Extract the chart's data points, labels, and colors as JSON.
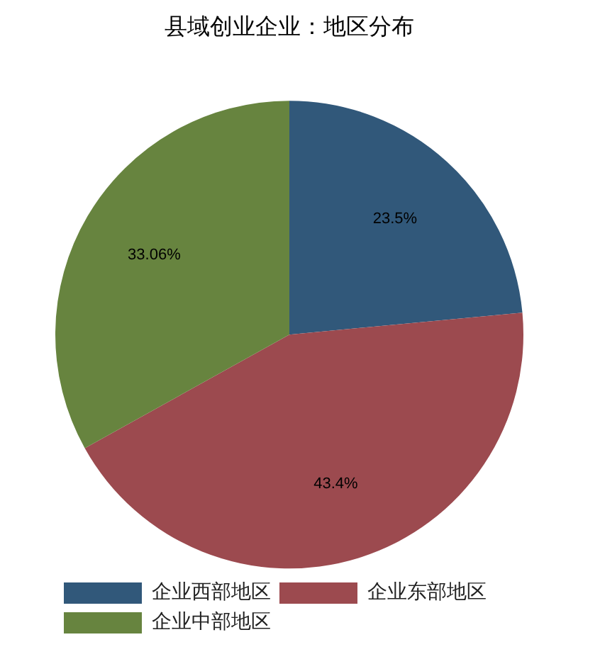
{
  "chart_data": {
    "type": "pie",
    "title": "县域创业企业：地区分布",
    "categories": [
      "企业西部地区",
      "企业东部地区",
      "企业中部地区"
    ],
    "values": [
      23.5,
      43.4,
      33.06
    ],
    "colors": [
      "#31587a",
      "#9c4a4f",
      "#67843f"
    ],
    "value_labels": [
      "23.5%",
      "43.4%",
      "33.06%"
    ],
    "legend": "bottom left"
  }
}
